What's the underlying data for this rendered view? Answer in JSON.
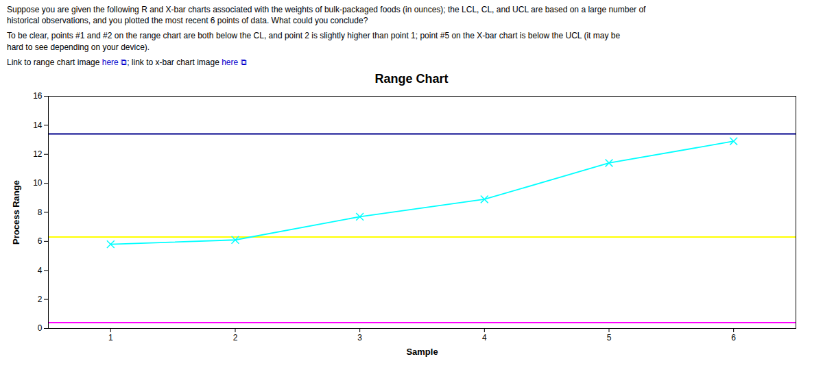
{
  "chart_data": {
    "type": "line",
    "title": "Range Chart",
    "x_label": "Sample",
    "y_label": "Process Range",
    "annotations": [
      [
        {
          "text": "Suppose you are given the following R and X-bar charts associated with the weights of bulk-packaged foods (in ounces); the LCL, CL, and UCL are based on a large number of"
        }
      ],
      [
        {
          "text": "historical observations, and you plotted the most recent 6 points of data. What could you conclude?"
        }
      ],
      [
        {
          "text": "To be clear, points #1 and #2 on the range chart are both below the CL, and point 2 is slightly higher than point 1; point #5 on the X-bar chart is below the UCL (it may be"
        }
      ],
      [
        {
          "text": "hard to see depending on your device)."
        }
      ],
      [
        {
          "text": "Link to range chart image "
        },
        {
          "text": "here",
          "color": "#0000CC"
        },
        {
          "text": " ⧉",
          "color": "#0000CC"
        },
        {
          "text": "; link to x-bar chart image "
        },
        {
          "text": "here",
          "color": "#0000CC"
        },
        {
          "text": " ⧉",
          "color": "#0000CC"
        }
      ]
    ],
    "x": [
      1,
      2,
      3,
      4,
      5,
      6
    ],
    "series": [
      {
        "color": "#00FFFF",
        "marker": "x",
        "values": [
          5.8,
          6.1,
          7.7,
          8.9,
          11.4,
          12.9
        ]
      }
    ],
    "control_lines": [
      {
        "value": 13.4,
        "color": "#00008B"
      },
      {
        "value": 6.3,
        "color": "#FFFF00"
      },
      {
        "value": 0.4,
        "color": "#FF00FF"
      }
    ],
    "xlim": [
      0.5,
      6.5
    ],
    "xticks": [
      1,
      2,
      3,
      4,
      5,
      6
    ],
    "ylim": [
      0,
      16
    ],
    "yticks": [
      0,
      2,
      4,
      6,
      8,
      10,
      12,
      14,
      16
    ],
    "grid": false
  }
}
